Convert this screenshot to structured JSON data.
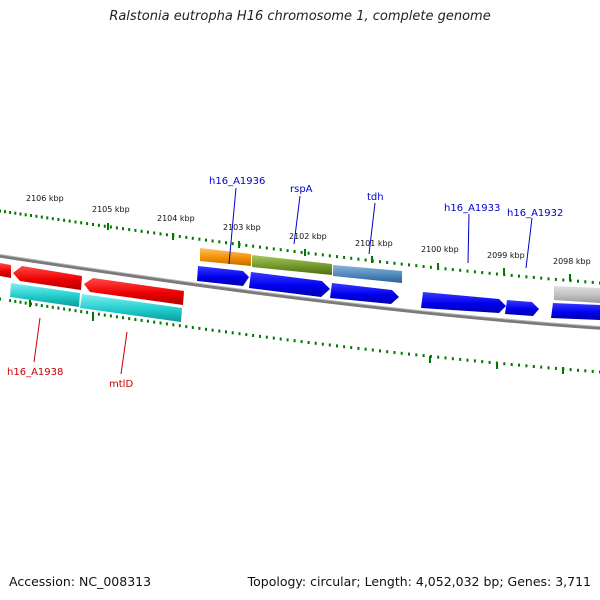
{
  "title": "Ralstonia eutropha H16 chromosome 1, complete genome",
  "footer": {
    "accession": "Accession: NC_008313",
    "stats": "Topology: circular; Length: 4,052,032 bp; Genes: 3,711"
  },
  "kbp_labels": [
    "2106 kbp",
    "2105 kbp",
    "2104 kbp",
    "2103 kbp",
    "2102 kbp",
    "2101 kbp",
    "2100 kbp",
    "2099 kbp",
    "2098 kbp"
  ],
  "gene_labels": {
    "h16_A1936": "h16_A1936",
    "rspA": "rspA",
    "tdh": "tdh",
    "h16_A1933": "h16_A1933",
    "h16_A1932": "h16_A1932",
    "h16_A1938": "h16_A1938",
    "mtlD": "mtlD"
  },
  "colors": {
    "forward_label": "#0000cc",
    "reverse_label": "#cc0000",
    "tick": "#007700",
    "backbone": "#777777"
  }
}
